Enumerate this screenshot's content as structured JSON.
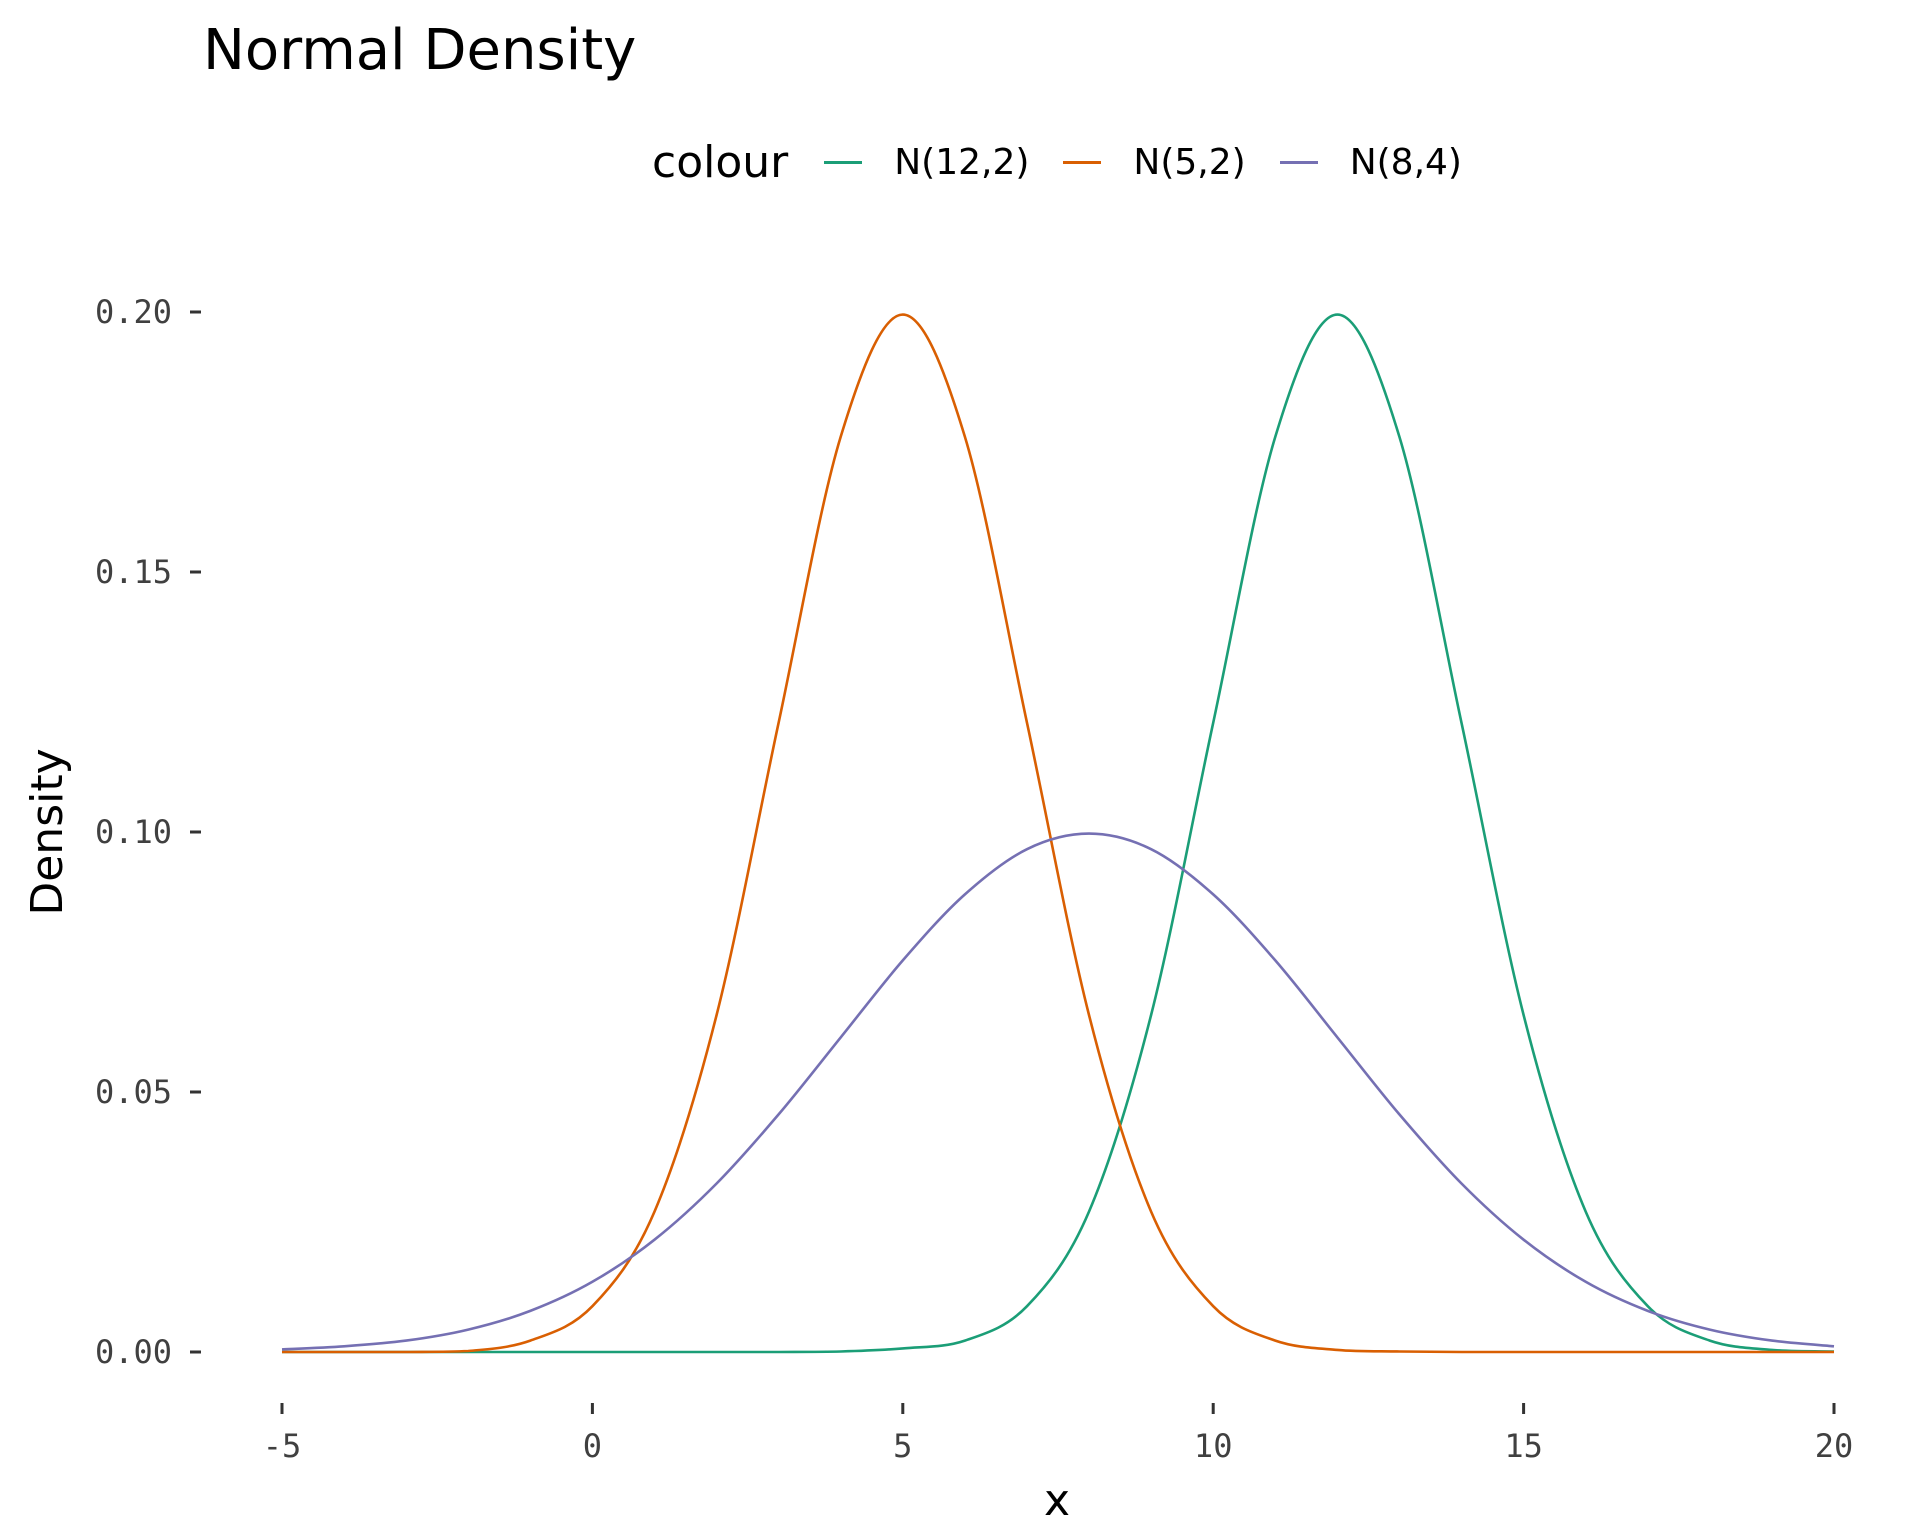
{
  "title": "Normal Density",
  "legend": {
    "title": "colour",
    "position": "top",
    "items": [
      {
        "label": "N(12,2)",
        "color": "#1b9e77"
      },
      {
        "label": "N(5,2)",
        "color": "#d95f02"
      },
      {
        "label": "N(8,4)",
        "color": "#7570b3"
      }
    ]
  },
  "chart_data": {
    "type": "line",
    "title": "Normal Density",
    "xlabel": "x",
    "ylabel": "Density",
    "xlim": [
      -5,
      20
    ],
    "ylim": [
      0,
      0.2
    ],
    "grid": false,
    "legend_position": "top",
    "x_ticks": [
      -5,
      0,
      5,
      10,
      15,
      20
    ],
    "x_tick_labels": [
      "-5",
      "0",
      "5",
      "10",
      "15",
      "20"
    ],
    "y_ticks": [
      0,
      0.05,
      0.1,
      0.15,
      0.2
    ],
    "y_tick_labels": [
      "0.00",
      "0.05",
      "0.10",
      "0.15",
      "0.20"
    ],
    "x": [
      -5,
      -4,
      -3,
      -2,
      -1,
      0,
      1,
      2,
      3,
      4,
      5,
      6,
      7,
      8,
      9,
      10,
      11,
      12,
      13,
      14,
      15,
      16,
      17,
      18,
      19,
      20
    ],
    "series": [
      {
        "name": "N(12,2)",
        "color": "#1b9e77",
        "values": [
          0.0,
          0.0,
          0.0,
          0.0,
          0.0,
          0.0,
          0.0,
          0.0,
          0.0,
          0.0001,
          0.0007,
          0.0022,
          0.0088,
          0.027,
          0.0648,
          0.121,
          0.176,
          0.1995,
          0.176,
          0.121,
          0.0648,
          0.027,
          0.0088,
          0.0022,
          0.0004,
          0.0001
        ]
      },
      {
        "name": "N(5,2)",
        "color": "#d95f02",
        "values": [
          0.0,
          0.0,
          0.0,
          0.0002,
          0.0022,
          0.0088,
          0.027,
          0.0648,
          0.121,
          0.176,
          0.1995,
          0.176,
          0.121,
          0.0648,
          0.027,
          0.0088,
          0.0022,
          0.0004,
          0.0001,
          0.0,
          0.0,
          0.0,
          0.0,
          0.0,
          0.0,
          0.0
        ]
      },
      {
        "name": "N(8,4)",
        "color": "#7570b3",
        "values": [
          0.0005,
          0.0011,
          0.0022,
          0.0043,
          0.0079,
          0.0135,
          0.0216,
          0.0324,
          0.0457,
          0.0605,
          0.0753,
          0.088,
          0.0967,
          0.0997,
          0.0967,
          0.088,
          0.0753,
          0.0605,
          0.0457,
          0.0324,
          0.0216,
          0.0135,
          0.0079,
          0.0043,
          0.0022,
          0.0011
        ]
      }
    ]
  }
}
